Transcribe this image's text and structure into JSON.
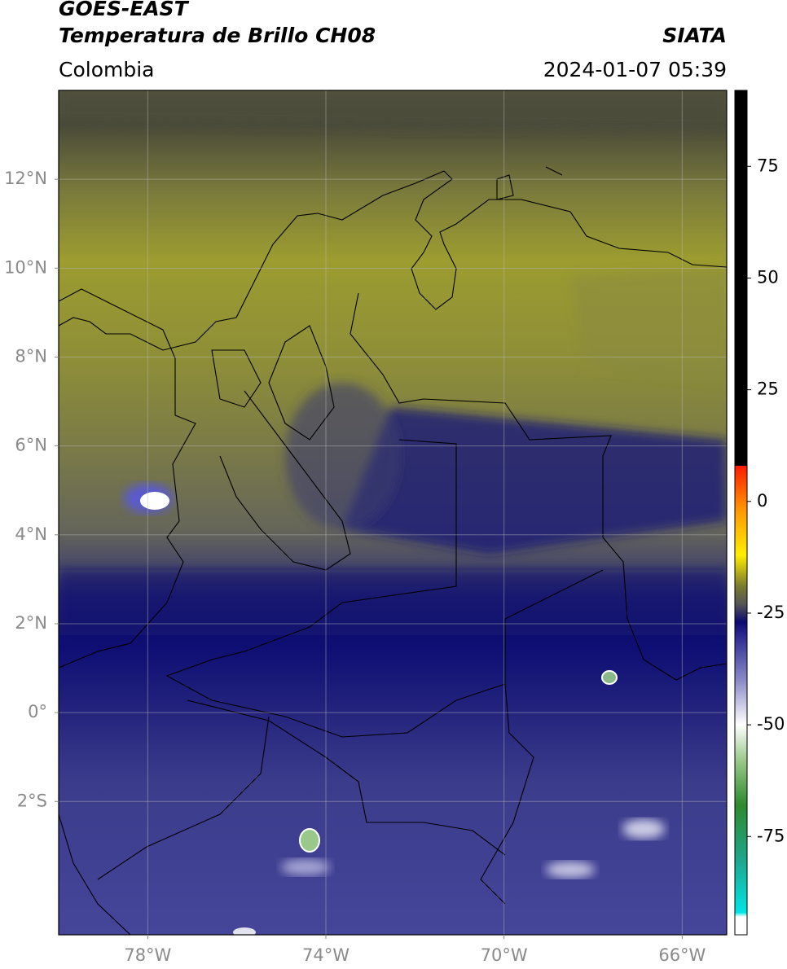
{
  "header": {
    "title": "GOES-EAST",
    "subtitle": "Temperatura de Brillo CH08",
    "region": "Colombia",
    "source": "SIATA",
    "timestamp": "2024-01-07 05:39"
  },
  "map": {
    "lonlim": [
      -80,
      -65
    ],
    "latlim": [
      -5,
      14
    ],
    "grid": true,
    "lonticks": [
      {
        "value": -78,
        "label": "78°W"
      },
      {
        "value": -74,
        "label": "74°W"
      },
      {
        "value": -70,
        "label": "70°W"
      },
      {
        "value": -66,
        "label": "66°W"
      }
    ],
    "latticks": [
      {
        "value": 12,
        "label": "12°N"
      },
      {
        "value": 10,
        "label": "10°N"
      },
      {
        "value": 8,
        "label": "8°N"
      },
      {
        "value": 6,
        "label": "6°N"
      },
      {
        "value": 4,
        "label": "4°N"
      },
      {
        "value": 2,
        "label": "2°N"
      },
      {
        "value": 0,
        "label": "0°"
      },
      {
        "value": -2,
        "label": "2°S"
      }
    ]
  },
  "colorbar": {
    "lim": [
      -97,
      92
    ],
    "ticks": [
      75,
      50,
      25,
      0,
      -25,
      -50,
      -75
    ],
    "stops": [
      {
        "value": -97,
        "color": "#ffffff"
      },
      {
        "value": -93,
        "color": "#ffffff"
      },
      {
        "value": -92,
        "color": "#00e5e5"
      },
      {
        "value": -80,
        "color": "#1fa58a"
      },
      {
        "value": -68,
        "color": "#2e8a2e"
      },
      {
        "value": -58,
        "color": "#9ac88a"
      },
      {
        "value": -50,
        "color": "#ffffff"
      },
      {
        "value": -40,
        "color": "#8a8ac8"
      },
      {
        "value": -30,
        "color": "#2a2a90"
      },
      {
        "value": -27,
        "color": "#0a0a70"
      },
      {
        "value": -23,
        "color": "#555555"
      },
      {
        "value": -19,
        "color": "#7a7a30"
      },
      {
        "value": -12,
        "color": "#ffee00"
      },
      {
        "value": -2,
        "color": "#ff9900"
      },
      {
        "value": 8,
        "color": "#ff1a00"
      },
      {
        "value": 8.01,
        "color": "#000000"
      },
      {
        "value": 92,
        "color": "#000000"
      }
    ]
  }
}
